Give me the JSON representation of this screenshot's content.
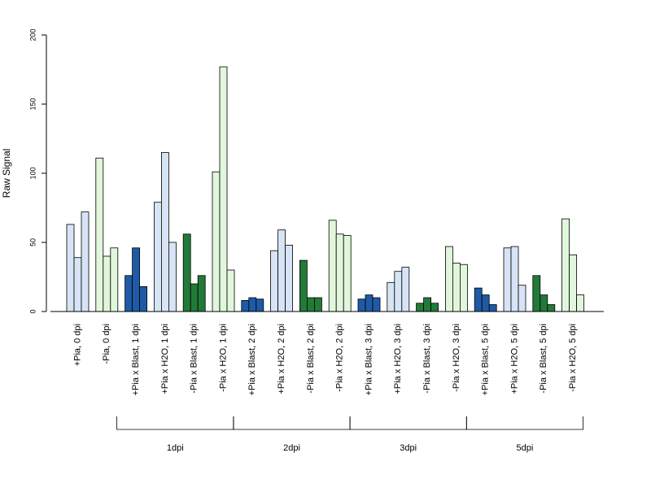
{
  "chart_data": {
    "type": "bar",
    "ylabel": "Raw Signal",
    "ylim": [
      0,
      200
    ],
    "yticks": [
      "0",
      "50",
      "100",
      "150",
      "200"
    ],
    "colors": {
      "dark_blue": "#1f5aa6",
      "light_blue": "#d6e4f5",
      "dark_green": "#227a38",
      "light_green": "#e1f7dc",
      "bar_border": "#000000"
    },
    "categories": [
      {
        "label": "+Pia, 0 dpi",
        "color": "light_blue",
        "values": [
          63,
          39,
          72
        ]
      },
      {
        "label": "-Pia, 0 dpi",
        "color": "light_green",
        "values": [
          111,
          40,
          46
        ]
      },
      {
        "label": "+Pia x Blast, 1 dpi",
        "color": "dark_blue",
        "values": [
          26,
          46,
          18
        ]
      },
      {
        "label": "+Pia x H2O, 1 dpi",
        "color": "light_blue",
        "values": [
          79,
          115,
          50
        ]
      },
      {
        "label": "-Pia x Blast, 1 dpi",
        "color": "dark_green",
        "values": [
          56,
          20,
          26
        ]
      },
      {
        "label": "-Pia x H2O, 1 dpi",
        "color": "light_green",
        "values": [
          101,
          177,
          30
        ]
      },
      {
        "label": "+Pia x Blast, 2 dpi",
        "color": "dark_blue",
        "values": [
          8,
          10,
          9
        ]
      },
      {
        "label": "+Pia x H2O, 2 dpi",
        "color": "light_blue",
        "values": [
          44,
          59,
          48
        ]
      },
      {
        "label": "-Pia x Blast, 2 dpi",
        "color": "dark_green",
        "values": [
          37,
          10,
          10
        ]
      },
      {
        "label": "-Pia x H2O, 2 dpi",
        "color": "light_green",
        "values": [
          66,
          56,
          55
        ]
      },
      {
        "label": "+Pia x Blast, 3 dpi",
        "color": "dark_blue",
        "values": [
          9,
          12,
          10
        ]
      },
      {
        "label": "+Pia x H2O, 3 dpi",
        "color": "light_blue",
        "values": [
          21,
          29,
          32
        ]
      },
      {
        "label": "-Pia x Blast, 3 dpi",
        "color": "dark_green",
        "values": [
          6,
          10,
          6
        ]
      },
      {
        "label": "-Pia x H2O, 3 dpi",
        "color": "light_green",
        "values": [
          47,
          35,
          34
        ]
      },
      {
        "label": "+Pia x Blast, 5 dpi",
        "color": "dark_blue",
        "values": [
          17,
          12,
          5
        ]
      },
      {
        "label": "+Pia x H2O, 5 dpi",
        "color": "light_blue",
        "values": [
          46,
          47,
          19
        ]
      },
      {
        "label": "-Pia x Blast, 5 dpi",
        "color": "dark_green",
        "values": [
          26,
          12,
          5
        ]
      },
      {
        "label": "-Pia x H2O, 5 dpi",
        "color": "light_green",
        "values": [
          67,
          41,
          12
        ]
      }
    ],
    "groups": [
      {
        "label": "1dpi",
        "from": 2,
        "to": 5
      },
      {
        "label": "2dpi",
        "from": 6,
        "to": 9
      },
      {
        "label": "3dpi",
        "from": 10,
        "to": 13
      },
      {
        "label": "5dpi",
        "from": 14,
        "to": 17
      }
    ]
  }
}
